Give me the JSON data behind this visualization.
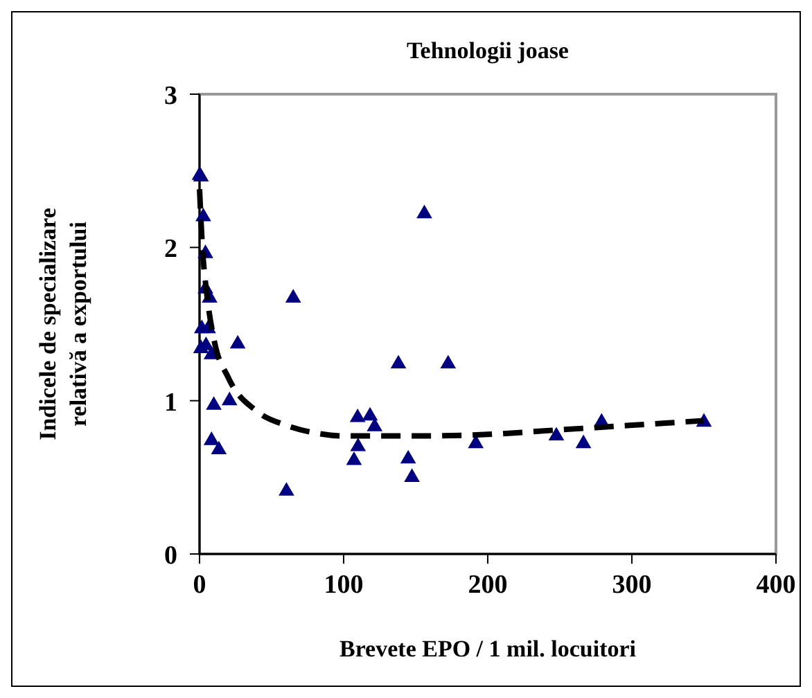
{
  "chart_data": {
    "type": "scatter",
    "title": "Tehnologii joase",
    "xlabel": "Brevete EPO / 1 mil. locuitori",
    "ylabel": "Indicele de specializare relativă a exportului",
    "xlim": [
      0,
      400
    ],
    "xticks": [
      0,
      100,
      200,
      300,
      400
    ],
    "ylim": [
      0,
      3
    ],
    "yticks": [
      0,
      1,
      2,
      3
    ],
    "grid": false,
    "series": [
      {
        "marker": "triangle",
        "color": "#000080",
        "x": [
          0,
          1,
          2.6,
          4.1,
          4.1,
          7,
          1.6,
          6,
          1,
          4.5,
          8.3,
          26.5,
          65,
          9.9,
          20.8,
          8.3,
          13.4,
          60.3,
          109.7,
          118.3,
          121.5,
          110,
          107.2,
          138,
          156,
          172.5,
          144.8,
          147.4,
          191.7,
          247.6,
          266.4,
          279,
          350
        ],
        "values": [
          2.47,
          2.46,
          2.2,
          1.96,
          1.73,
          1.67,
          1.47,
          1.47,
          1.34,
          1.36,
          1.3,
          1.37,
          1.67,
          0.97,
          1.0,
          0.74,
          0.68,
          0.41,
          0.89,
          0.9,
          0.83,
          0.7,
          0.61,
          1.24,
          2.22,
          1.24,
          0.62,
          0.5,
          0.72,
          0.77,
          0.72,
          0.86,
          0.86
        ]
      },
      {
        "type": "line",
        "color": "#000000",
        "line_style": "dashed",
        "x": [
          0,
          2,
          5,
          10,
          20,
          40,
          60,
          80,
          100,
          150,
          200,
          250,
          300,
          350
        ],
        "values": [
          2.38,
          2.0,
          1.7,
          1.4,
          1.15,
          0.93,
          0.84,
          0.79,
          0.77,
          0.77,
          0.78,
          0.81,
          0.84,
          0.87
        ]
      }
    ]
  }
}
